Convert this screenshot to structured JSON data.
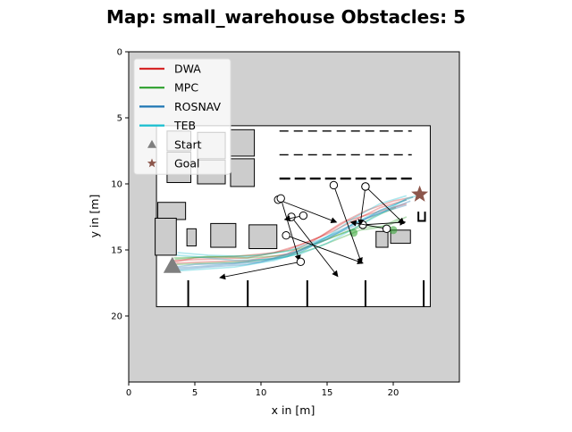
{
  "chart_data": {
    "type": "line",
    "title": "Map: small_warehouse Obstacles: 5",
    "xlabel": "x in [m]",
    "ylabel": "y in [m]",
    "xlim": [
      0,
      25
    ],
    "ylim": [
      25,
      0
    ],
    "x_ticks": [
      0,
      5,
      10,
      15,
      20
    ],
    "y_ticks": [
      0,
      5,
      10,
      15,
      20
    ],
    "grid": false,
    "legend_position": "top-left",
    "colors": {
      "background_map": "#d0d0d0",
      "free_space": "#ffffff",
      "obstacle_fill": "#cccccc",
      "walls": "#000000",
      "start_marker": "#7f7f7f",
      "goal_marker": "#8c564b"
    },
    "legend": [
      {
        "label": "DWA",
        "color": "#d62728",
        "marker": "line"
      },
      {
        "label": "MPC",
        "color": "#2ca02c",
        "marker": "line"
      },
      {
        "label": "ROSNAV",
        "color": "#1f77b4",
        "marker": "line"
      },
      {
        "label": "TEB",
        "color": "#17becf",
        "marker": "line"
      },
      {
        "label": "Start",
        "color": "#7f7f7f",
        "marker": "triangle"
      },
      {
        "label": "Goal",
        "color": "#8c564b",
        "marker": "star"
      }
    ],
    "start": [
      3.3,
      16.2
    ],
    "goal": [
      22.0,
      10.8
    ],
    "series": [
      {
        "name": "DWA",
        "color": "#d62728",
        "values": [
          [
            3.5,
            15.9
          ],
          [
            5,
            15.6
          ],
          [
            8,
            15.5
          ],
          [
            11,
            15.2
          ],
          [
            13,
            14.6
          ],
          [
            15,
            13.8
          ],
          [
            17,
            12.8
          ],
          [
            19,
            11.8
          ],
          [
            21,
            11.2
          ]
        ]
      },
      {
        "name": "DWA",
        "color": "#d62728",
        "values": [
          [
            3.6,
            16.0
          ],
          [
            6,
            15.9
          ],
          [
            9,
            15.8
          ],
          [
            12,
            15.3
          ],
          [
            14,
            14.3
          ],
          [
            16,
            13.0
          ],
          [
            18,
            12.0
          ],
          [
            20,
            11.3
          ],
          [
            21.5,
            11.0
          ]
        ]
      },
      {
        "name": "DWA",
        "color": "#d62728",
        "values": [
          [
            3.4,
            15.8
          ],
          [
            6,
            15.7
          ],
          [
            9,
            15.6
          ],
          [
            12,
            15.0
          ],
          [
            14.5,
            14.0
          ],
          [
            16.5,
            12.8
          ],
          [
            18.5,
            12.2
          ],
          [
            21,
            11.5
          ]
        ]
      },
      {
        "name": "MPC",
        "color": "#2ca02c",
        "values": [
          [
            3.5,
            15.7
          ],
          [
            6,
            15.5
          ],
          [
            9,
            15.6
          ],
          [
            12,
            15.4
          ],
          [
            14,
            14.6
          ],
          [
            16,
            13.8
          ],
          [
            17.5,
            13.3
          ],
          [
            19.5,
            13.2
          ],
          [
            21,
            12.5
          ]
        ]
      },
      {
        "name": "MPC",
        "color": "#2ca02c",
        "values": [
          [
            3.6,
            16.1
          ],
          [
            6,
            16.0
          ],
          [
            9,
            15.9
          ],
          [
            12,
            15.5
          ],
          [
            14,
            14.9
          ],
          [
            16,
            14.1
          ],
          [
            17.5,
            13.5
          ],
          [
            19,
            13.3
          ],
          [
            20.5,
            12.6
          ]
        ]
      },
      {
        "name": "MPC",
        "color": "#2ca02c",
        "values": [
          [
            3.4,
            15.6
          ],
          [
            7,
            15.5
          ],
          [
            10,
            15.4
          ],
          [
            13,
            14.9
          ],
          [
            15,
            14.2
          ],
          [
            17,
            13.4
          ],
          [
            18.5,
            12.5
          ],
          [
            20.2,
            11.8
          ]
        ]
      },
      {
        "name": "ROSNAV",
        "color": "#1f77b4",
        "values": [
          [
            3.5,
            16.3
          ],
          [
            5,
            16.1
          ],
          [
            8,
            16.0
          ],
          [
            11,
            15.6
          ],
          [
            13,
            15.0
          ],
          [
            15,
            14.1
          ],
          [
            17,
            13.2
          ],
          [
            19,
            12.0
          ],
          [
            21,
            11.2
          ]
        ]
      },
      {
        "name": "ROSNAV",
        "color": "#1f77b4",
        "values": [
          [
            3.6,
            16.5
          ],
          [
            6,
            16.3
          ],
          [
            9,
            16.1
          ],
          [
            12,
            15.5
          ],
          [
            14,
            14.5
          ],
          [
            16,
            13.5
          ],
          [
            18,
            12.6
          ],
          [
            20,
            11.8
          ],
          [
            21.3,
            11.3
          ]
        ]
      },
      {
        "name": "ROSNAV",
        "color": "#1f77b4",
        "values": [
          [
            3.3,
            16.4
          ],
          [
            6,
            16.2
          ],
          [
            10,
            15.9
          ],
          [
            13,
            15.1
          ],
          [
            15,
            14.2
          ],
          [
            17,
            13.0
          ],
          [
            19,
            12.2
          ],
          [
            21,
            11.6
          ]
        ]
      },
      {
        "name": "TEB",
        "color": "#17becf",
        "values": [
          [
            3.6,
            15.4
          ],
          [
            5,
            15.5
          ],
          [
            8,
            15.8
          ],
          [
            11,
            15.7
          ],
          [
            13,
            15.3
          ],
          [
            15,
            14.5
          ],
          [
            17,
            13.4
          ],
          [
            19,
            12.3
          ],
          [
            21,
            11.1
          ],
          [
            21.8,
            10.9
          ]
        ]
      },
      {
        "name": "TEB",
        "color": "#17becf",
        "values": [
          [
            3.5,
            16.6
          ],
          [
            5,
            16.5
          ],
          [
            8,
            16.3
          ],
          [
            11,
            15.8
          ],
          [
            13,
            15.2
          ],
          [
            15,
            14.0
          ],
          [
            17,
            12.6
          ],
          [
            19,
            11.5
          ],
          [
            21,
            10.9
          ]
        ]
      },
      {
        "name": "TEB",
        "color": "#17becf",
        "values": [
          [
            3.7,
            15.2
          ],
          [
            6,
            15.4
          ],
          [
            9,
            15.5
          ],
          [
            12,
            15.1
          ],
          [
            14,
            14.4
          ],
          [
            16,
            13.6
          ],
          [
            18,
            12.5
          ],
          [
            20,
            11.6
          ],
          [
            21.5,
            11.0
          ]
        ]
      }
    ],
    "dynamic_obstacles": [
      {
        "from": [
          11.3,
          11.2
        ],
        "to": [
          15.7,
          12.9
        ]
      },
      {
        "from": [
          11.5,
          11.1
        ],
        "to": [
          12.9,
          15.8
        ]
      },
      {
        "from": [
          12.3,
          12.5
        ],
        "to": [
          15.8,
          17.0
        ]
      },
      {
        "from": [
          11.9,
          13.9
        ],
        "to": [
          17.7,
          16.0
        ]
      },
      {
        "from": [
          15.5,
          10.1
        ],
        "to": [
          17.6,
          16.0
        ]
      },
      {
        "from": [
          17.7,
          13.1
        ],
        "to": [
          20.9,
          12.9
        ]
      },
      {
        "from": [
          13.0,
          15.9
        ],
        "to": [
          6.9,
          17.1
        ]
      },
      {
        "from": [
          17.9,
          10.2
        ],
        "to": [
          20.8,
          13.0
        ]
      },
      {
        "from": [
          17.9,
          10.2
        ],
        "to": [
          17.5,
          13.1
        ]
      },
      {
        "from": [
          19.5,
          13.4
        ],
        "to": [
          16.8,
          12.9
        ]
      },
      {
        "from": [
          13.2,
          12.4
        ],
        "to": [
          11.8,
          12.7
        ]
      }
    ]
  }
}
